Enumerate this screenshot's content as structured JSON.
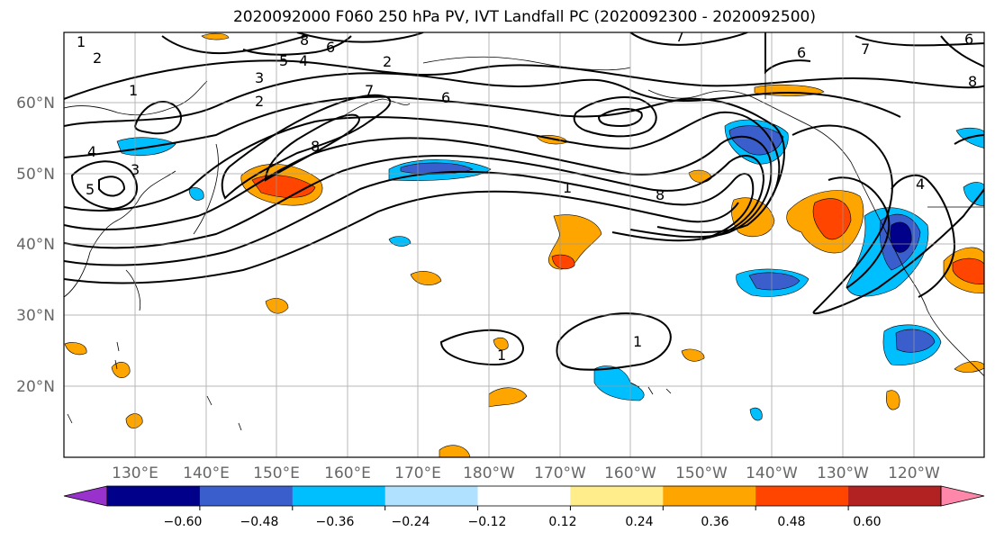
{
  "title": "2020092000 F060 250 hPa PV, IVT Landfall PC (2020092300 - 2020092500)",
  "lat_labels": [
    "60°N",
    "50°N",
    "40°N",
    "30°N",
    "20°N"
  ],
  "lon_labels": [
    "130°E",
    "140°E",
    "150°E",
    "160°E",
    "170°E",
    "180°W",
    "170°W",
    "160°W",
    "150°W",
    "140°W",
    "130°W",
    "120°W"
  ],
  "colorbar": {
    "ticks": [
      "−0.60",
      "−0.48",
      "−0.36",
      "−0.24",
      "−0.12",
      "0.12",
      "0.24",
      "0.36",
      "0.48",
      "0.60"
    ],
    "colors": [
      "#9932cc",
      "#00008b",
      "#3a5fcd",
      "#00bfff",
      "#b0e2ff",
      "#ffffff",
      "#ffec8b",
      "#ffa500",
      "#ff4500",
      "#b22222",
      "#ff88aa"
    ]
  },
  "contour_labels": [
    "1",
    "2",
    "3",
    "4",
    "5",
    "6",
    "7",
    "8"
  ],
  "colors": {
    "negative_strong": "#00008b",
    "positive_strong": "#ff4500",
    "contour": "#000000"
  }
}
